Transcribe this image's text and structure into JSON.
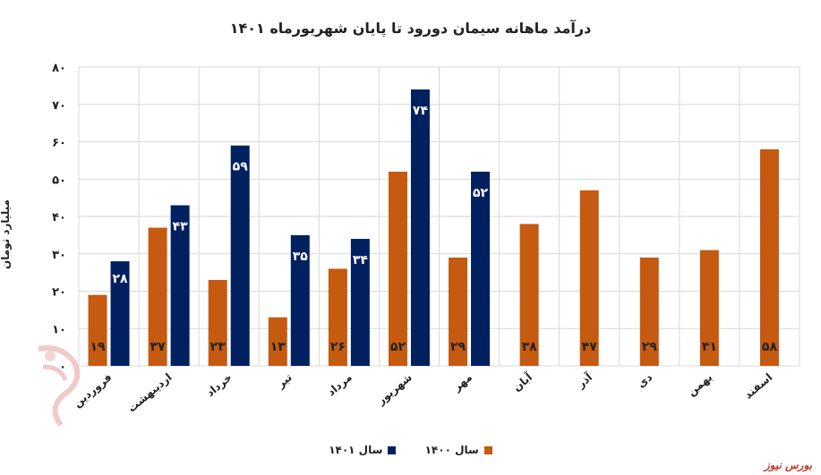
{
  "chart_data": {
    "type": "bar",
    "title": "درآمد ماهانه سیمان دورود تا پایان شهریورماه ۱۴۰۱",
    "ylabel": "میلیارد تومان",
    "xlabel": "",
    "ylim": [
      0,
      80
    ],
    "yticks": [
      0,
      10,
      20,
      30,
      40,
      50,
      60,
      70,
      80
    ],
    "ytick_labels": [
      "۰",
      "۱۰",
      "۲۰",
      "۳۰",
      "۴۰",
      "۵۰",
      "۶۰",
      "۷۰",
      "۸۰"
    ],
    "grid": true,
    "legend_position": "bottom",
    "categories": [
      "فروردین",
      "اردیبهشت",
      "خرداد",
      "تیر",
      "مرداد",
      "شهریور",
      "مهر",
      "آبان",
      "آذر",
      "دی",
      "بهمن",
      "اسفند"
    ],
    "series": [
      {
        "name": "سال ۱۴۰۰",
        "color": "#c55a11",
        "values": [
          19,
          37,
          23,
          13,
          26,
          52,
          29,
          38,
          47,
          29,
          31,
          58
        ],
        "labels": [
          "۱۹",
          "۳۷",
          "۲۳",
          "۱۳",
          "۲۶",
          "۵۲",
          "۲۹",
          "۳۸",
          "۴۷",
          "۲۹",
          "۳۱",
          "۵۸"
        ]
      },
      {
        "name": "سال ۱۴۰۱",
        "color": "#002060",
        "values": [
          28,
          43,
          59,
          35,
          34,
          74,
          52,
          null,
          null,
          null,
          null,
          null
        ],
        "labels": [
          "۲۸",
          "۴۳",
          "۵۹",
          "۳۵",
          "۳۴",
          "۷۴",
          "۵۲",
          null,
          null,
          null,
          null,
          null
        ]
      }
    ]
  },
  "source": "بورس نیوز"
}
